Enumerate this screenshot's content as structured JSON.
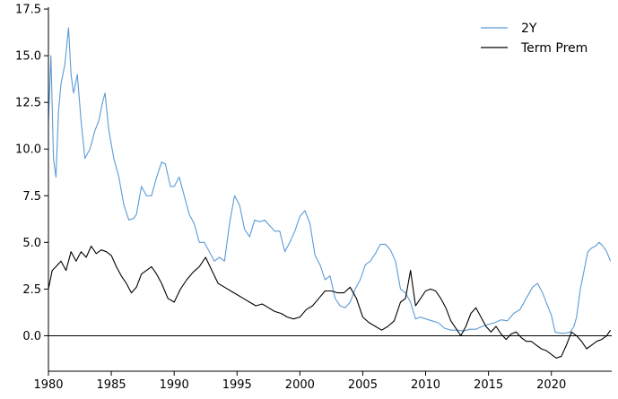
{
  "chart_data": {
    "type": "line",
    "title": "",
    "xlabel": "",
    "ylabel": "",
    "xlim": [
      1980,
      2024.8
    ],
    "ylim": [
      -1.9,
      17.6
    ],
    "grid": false,
    "legend_position": "top-right",
    "hline": 0,
    "x_ticks": [
      1980,
      1985,
      1990,
      1995,
      2000,
      2005,
      2010,
      2015,
      2020
    ],
    "x_tick_labels": [
      "1980",
      "1985",
      "1990",
      "1995",
      "2000",
      "2005",
      "2010",
      "2015",
      "2020"
    ],
    "y_ticks": [
      0,
      2.5,
      5,
      7.5,
      10,
      12.5,
      15,
      17.5
    ],
    "y_tick_labels": [
      "0.0",
      "2.5",
      "5.0",
      "7.5",
      "10.0",
      "12.5",
      "15.0",
      "17.5"
    ],
    "series": [
      {
        "name": "2Y",
        "color": "#5b9bd5",
        "x": [
          1980.0,
          1980.2,
          1980.4,
          1980.6,
          1980.8,
          1981.0,
          1981.3,
          1981.6,
          1981.8,
          1982.0,
          1982.3,
          1982.6,
          1982.9,
          1983.3,
          1983.7,
          1984.0,
          1984.3,
          1984.5,
          1984.8,
          1985.2,
          1985.6,
          1986.0,
          1986.4,
          1986.8,
          1987.0,
          1987.4,
          1987.8,
          1988.2,
          1988.6,
          1989.0,
          1989.3,
          1989.7,
          1990.0,
          1990.4,
          1990.8,
          1991.2,
          1991.6,
          1992.0,
          1992.4,
          1992.8,
          1993.2,
          1993.6,
          1994.0,
          1994.4,
          1994.8,
          1995.2,
          1995.6,
          1996.0,
          1996.4,
          1996.8,
          1997.2,
          1997.6,
          1998.0,
          1998.4,
          1998.8,
          1999.2,
          1999.6,
          2000.0,
          2000.4,
          2000.8,
          2001.2,
          2001.6,
          2002.0,
          2002.4,
          2002.8,
          2003.2,
          2003.6,
          2004.0,
          2004.4,
          2004.8,
          2005.2,
          2005.6,
          2006.0,
          2006.4,
          2006.8,
          2007.2,
          2007.6,
          2008.0,
          2008.4,
          2008.8,
          2009.2,
          2009.6,
          2010.0,
          2010.5,
          2011.0,
          2011.5,
          2012.0,
          2012.5,
          2013.0,
          2013.5,
          2014.0,
          2014.5,
          2015.0,
          2015.5,
          2016.0,
          2016.5,
          2017.0,
          2017.5,
          2018.0,
          2018.5,
          2018.9,
          2019.3,
          2019.7,
          2020.0,
          2020.3,
          2020.6,
          2021.0,
          2021.5,
          2021.8,
          2022.0,
          2022.3,
          2022.6,
          2022.9,
          2023.2,
          2023.5,
          2023.8,
          2024.1,
          2024.4,
          2024.7
        ],
        "y": [
          11.5,
          15.0,
          9.5,
          8.5,
          12.0,
          13.5,
          14.5,
          16.5,
          14.0,
          13.0,
          14.0,
          11.5,
          9.5,
          10.0,
          11.0,
          11.5,
          12.5,
          13.0,
          11.0,
          9.5,
          8.5,
          7.0,
          6.2,
          6.3,
          6.5,
          8.0,
          7.5,
          7.5,
          8.5,
          9.3,
          9.2,
          8.0,
          8.0,
          8.5,
          7.5,
          6.5,
          6.0,
          5.0,
          5.0,
          4.5,
          4.0,
          4.2,
          4.0,
          6.0,
          7.5,
          7.0,
          5.7,
          5.3,
          6.2,
          6.1,
          6.2,
          5.9,
          5.6,
          5.6,
          4.5,
          5.0,
          5.6,
          6.4,
          6.7,
          6.0,
          4.3,
          3.8,
          3.0,
          3.2,
          2.0,
          1.6,
          1.5,
          1.8,
          2.5,
          3.0,
          3.8,
          4.0,
          4.4,
          4.9,
          4.9,
          4.6,
          4.0,
          2.5,
          2.3,
          1.8,
          0.9,
          1.0,
          0.9,
          0.8,
          0.7,
          0.4,
          0.3,
          0.3,
          0.25,
          0.35,
          0.35,
          0.5,
          0.6,
          0.7,
          0.85,
          0.8,
          1.2,
          1.4,
          2.0,
          2.6,
          2.8,
          2.3,
          1.6,
          1.1,
          0.2,
          0.15,
          0.12,
          0.2,
          0.5,
          1.0,
          2.5,
          3.5,
          4.5,
          4.7,
          4.8,
          5.0,
          4.8,
          4.5,
          4.0
        ],
        "show_legend": true
      },
      {
        "name": "Term Prem",
        "color": "#000000",
        "x": [
          1980.0,
          1980.3,
          1980.6,
          1981.0,
          1981.4,
          1981.8,
          1982.2,
          1982.6,
          1983.0,
          1983.4,
          1983.8,
          1984.2,
          1984.6,
          1985.0,
          1985.4,
          1985.8,
          1986.2,
          1986.6,
          1987.0,
          1987.4,
          1987.8,
          1988.2,
          1988.6,
          1989.0,
          1989.5,
          1990.0,
          1990.5,
          1991.0,
          1991.5,
          1992.0,
          1992.5,
          1993.0,
          1993.5,
          1994.0,
          1994.5,
          1995.0,
          1995.5,
          1996.0,
          1996.5,
          1997.0,
          1997.5,
          1998.0,
          1998.5,
          1999.0,
          1999.5,
          2000.0,
          2000.5,
          2001.0,
          2001.5,
          2002.0,
          2002.5,
          2003.0,
          2003.5,
          2004.0,
          2004.5,
          2005.0,
          2005.5,
          2006.0,
          2006.5,
          2007.0,
          2007.5,
          2008.0,
          2008.4,
          2008.8,
          2009.2,
          2009.6,
          2010.0,
          2010.4,
          2010.8,
          2011.2,
          2011.6,
          2012.0,
          2012.4,
          2012.8,
          2013.2,
          2013.6,
          2014.0,
          2014.4,
          2014.8,
          2015.2,
          2015.6,
          2016.0,
          2016.4,
          2016.8,
          2017.2,
          2017.6,
          2018.0,
          2018.4,
          2018.8,
          2019.2,
          2019.6,
          2020.0,
          2020.4,
          2020.8,
          2021.2,
          2021.6,
          2022.0,
          2022.4,
          2022.8,
          2023.2,
          2023.6,
          2024.0,
          2024.4,
          2024.7
        ],
        "y": [
          2.5,
          3.5,
          3.7,
          4.0,
          3.5,
          4.5,
          4.0,
          4.5,
          4.2,
          4.8,
          4.4,
          4.6,
          4.5,
          4.3,
          3.7,
          3.2,
          2.8,
          2.3,
          2.6,
          3.3,
          3.5,
          3.7,
          3.3,
          2.8,
          2.0,
          1.8,
          2.5,
          3.0,
          3.4,
          3.7,
          4.2,
          3.5,
          2.8,
          2.6,
          2.4,
          2.2,
          2.0,
          1.8,
          1.6,
          1.7,
          1.5,
          1.3,
          1.2,
          1.0,
          0.9,
          1.0,
          1.4,
          1.6,
          2.0,
          2.4,
          2.4,
          2.3,
          2.3,
          2.6,
          2.0,
          1.0,
          0.7,
          0.5,
          0.3,
          0.5,
          0.8,
          1.8,
          2.0,
          3.5,
          1.6,
          2.0,
          2.4,
          2.5,
          2.4,
          2.0,
          1.5,
          0.8,
          0.4,
          0.0,
          0.5,
          1.2,
          1.5,
          1.0,
          0.5,
          0.2,
          0.5,
          0.1,
          -0.2,
          0.1,
          0.2,
          -0.1,
          -0.3,
          -0.3,
          -0.5,
          -0.7,
          -0.8,
          -1.0,
          -1.2,
          -1.1,
          -0.5,
          0.2,
          0.0,
          -0.3,
          -0.7,
          -0.5,
          -0.3,
          -0.2,
          0.0,
          0.3
        ],
        "show_legend": true
      }
    ]
  }
}
